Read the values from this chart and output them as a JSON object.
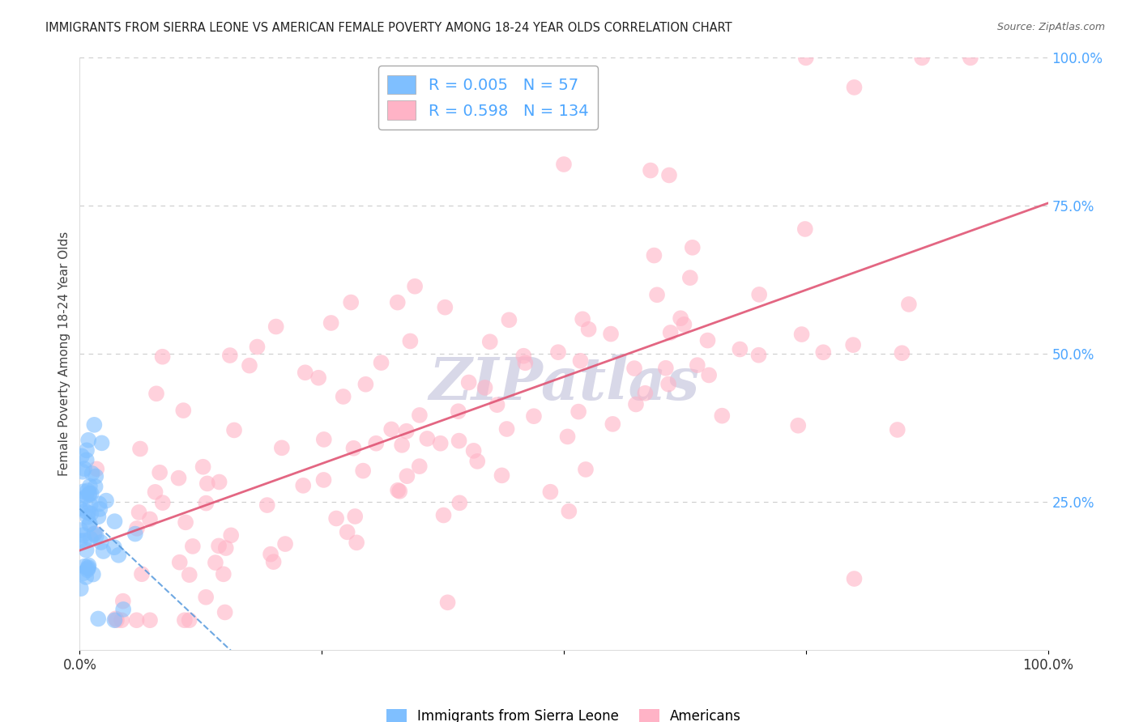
{
  "title": "IMMIGRANTS FROM SIERRA LEONE VS AMERICAN FEMALE POVERTY AMONG 18-24 YEAR OLDS CORRELATION CHART",
  "source": "Source: ZipAtlas.com",
  "ylabel": "Female Poverty Among 18-24 Year Olds",
  "legend_label_blue": "Immigrants from Sierra Leone",
  "legend_label_pink": "Americans",
  "R_blue": 0.005,
  "N_blue": 57,
  "R_pink": 0.598,
  "N_pink": 134,
  "blue_color": "#7fbfff",
  "pink_color": "#ffb3c6",
  "blue_line_color": "#5599dd",
  "pink_line_color": "#e05575",
  "background_color": "#ffffff",
  "grid_color": "#cccccc",
  "right_tick_color": "#4da6ff",
  "watermark_color": "#d8d8e8",
  "legend_text_color": "#4da6ff"
}
